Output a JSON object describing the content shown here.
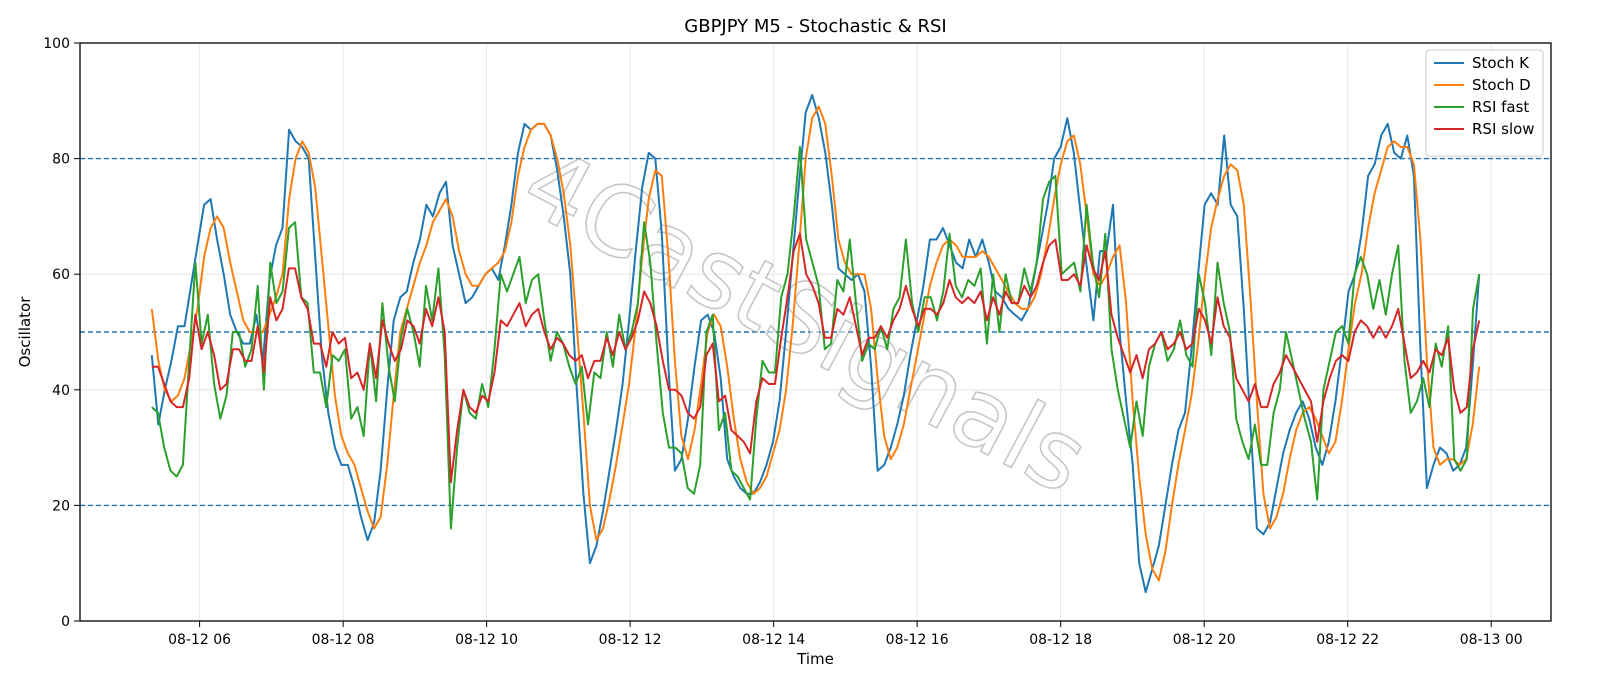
{
  "chart_data": {
    "type": "line",
    "title": "GBPJPY M5 - Stochastic & RSI",
    "xlabel": "Time",
    "ylabel": "Oscillator",
    "ylim": [
      0,
      100
    ],
    "yticks": [
      0,
      20,
      40,
      60,
      80,
      100
    ],
    "xticks": [
      "08-12 06",
      "08-12 08",
      "08-12 10",
      "08-12 12",
      "08-12 14",
      "08-12 16",
      "08-12 18",
      "08-12 20",
      "08-12 22",
      "08-13 00"
    ],
    "x_start": "2024-08-12 05:20",
    "x_end": "2024-08-12 23:50",
    "xlim": [
      "2024-08-12 04:20",
      "2024-08-13 00:50"
    ],
    "reference_lines": [
      20,
      50,
      80
    ],
    "grid": true,
    "legend_position": "top-right",
    "watermark": "4CastSignals",
    "series": [
      {
        "name": "Stoch K",
        "color": "#1f77b4",
        "values": [
          46,
          34,
          40,
          45,
          51,
          51,
          58,
          65,
          72,
          73,
          66,
          60,
          53,
          50,
          48,
          48,
          53,
          45,
          59,
          65,
          68,
          85,
          83,
          82,
          80,
          63,
          46,
          36,
          30,
          27,
          27,
          23,
          18,
          14,
          17,
          26,
          40,
          52,
          56,
          57,
          62,
          66,
          72,
          70,
          74,
          76,
          65,
          60,
          55,
          56,
          58,
          60,
          61,
          59,
          65,
          72,
          81,
          86,
          85,
          86,
          86,
          84,
          78,
          70,
          60,
          40,
          22,
          10,
          13,
          19,
          26,
          33,
          41,
          52,
          64,
          75,
          81,
          80,
          67,
          44,
          26,
          28,
          35,
          44,
          52,
          53,
          50,
          42,
          28,
          25,
          23,
          22,
          22,
          24,
          27,
          31,
          38,
          50,
          63,
          76,
          88,
          91,
          87,
          81,
          72,
          61,
          60,
          59,
          60,
          57,
          44,
          26,
          27,
          30,
          34,
          39,
          46,
          52,
          58,
          66,
          66,
          68,
          65,
          62,
          61,
          66,
          63,
          66,
          62,
          57,
          56,
          54,
          53,
          52,
          54,
          60,
          66,
          72,
          80,
          82,
          87,
          81,
          71,
          61,
          52,
          64,
          64,
          72,
          50,
          38,
          27,
          10,
          5,
          9,
          13,
          20,
          27,
          33,
          36,
          47,
          60,
          72,
          74,
          72,
          84,
          72,
          70,
          54,
          34,
          16,
          15,
          17,
          23,
          29,
          33,
          36,
          38,
          35,
          30,
          27,
          31,
          38,
          47,
          57,
          60,
          67,
          77,
          79,
          84,
          86,
          81,
          80,
          84,
          77,
          47,
          23,
          27,
          30,
          29,
          26,
          27,
          30,
          44,
          60
        ]
      },
      {
        "name": "Stoch D",
        "color": "#ff7f0e",
        "values": [
          54,
          45,
          40,
          38,
          39,
          42,
          48,
          54,
          63,
          68,
          70,
          68,
          62,
          57,
          52,
          50,
          50,
          50,
          53,
          56,
          60,
          73,
          80,
          83,
          81,
          75,
          63,
          51,
          39,
          32,
          29,
          27,
          23,
          19,
          16,
          18,
          27,
          39,
          50,
          54,
          58,
          62,
          65,
          69,
          71,
          73,
          70,
          64,
          60,
          58,
          58,
          60,
          61,
          62,
          64,
          69,
          77,
          82,
          85,
          86,
          86,
          84,
          80,
          74,
          65,
          51,
          36,
          20,
          14,
          16,
          21,
          27,
          34,
          41,
          51,
          63,
          73,
          78,
          77,
          63,
          45,
          32,
          28,
          33,
          41,
          50,
          53,
          51,
          44,
          35,
          28,
          24,
          22,
          23,
          25,
          29,
          33,
          40,
          51,
          65,
          80,
          87,
          89,
          86,
          77,
          66,
          62,
          60,
          60,
          60,
          54,
          42,
          32,
          28,
          30,
          34,
          40,
          46,
          52,
          58,
          62,
          65,
          66,
          65,
          63,
          63,
          63,
          64,
          63,
          61,
          59,
          57,
          55,
          54,
          54,
          56,
          60,
          66,
          73,
          79,
          83,
          84,
          79,
          70,
          60,
          58,
          60,
          63,
          65,
          55,
          38,
          25,
          15,
          9,
          7,
          12,
          20,
          27,
          33,
          39,
          48,
          59,
          68,
          73,
          77,
          79,
          78,
          72,
          56,
          38,
          22,
          16,
          18,
          22,
          28,
          33,
          36,
          37,
          35,
          32,
          29,
          31,
          38,
          47,
          55,
          60,
          68,
          74,
          78,
          82,
          83,
          82,
          82,
          79,
          66,
          45,
          30,
          27,
          28,
          28,
          27,
          28,
          34,
          44
        ]
      },
      {
        "name": "RSI fast",
        "color": "#2ca02c",
        "values": [
          37,
          36,
          30,
          26,
          25,
          27,
          45,
          62,
          48,
          53,
          41,
          35,
          39,
          50,
          50,
          44,
          47,
          58,
          40,
          62,
          55,
          57,
          68,
          69,
          56,
          55,
          43,
          43,
          37,
          46,
          45,
          47,
          35,
          37,
          32,
          48,
          38,
          55,
          44,
          38,
          49,
          54,
          50,
          44,
          58,
          52,
          61,
          46,
          16,
          30,
          40,
          36,
          35,
          41,
          37,
          47,
          60,
          57,
          60,
          63,
          55,
          59,
          60,
          52,
          45,
          50,
          48,
          44,
          41,
          44,
          34,
          43,
          42,
          50,
          44,
          53,
          47,
          50,
          55,
          69,
          62,
          48,
          36,
          30,
          30,
          29,
          23,
          22,
          27,
          50,
          53,
          33,
          36,
          26,
          25,
          23,
          21,
          35,
          45,
          43,
          43,
          56,
          60,
          70,
          82,
          66,
          62,
          58,
          47,
          48,
          59,
          57,
          66,
          55,
          45,
          48,
          47,
          51,
          47,
          54,
          56,
          66,
          55,
          50,
          56,
          56,
          52,
          57,
          67,
          58,
          56,
          59,
          58,
          61,
          48,
          60,
          50,
          60,
          55,
          55,
          61,
          57,
          62,
          73,
          76,
          77,
          60,
          61,
          62,
          57,
          72,
          62,
          56,
          67,
          47,
          40,
          35,
          30,
          38,
          32,
          44,
          48,
          50,
          45,
          47,
          52,
          46,
          44,
          60,
          55,
          46,
          62,
          55,
          50,
          35,
          31,
          28,
          34,
          27,
          27,
          36,
          40,
          50,
          45,
          40,
          35,
          31,
          21,
          40,
          45,
          50,
          51,
          48,
          60,
          63,
          60,
          54,
          59,
          53,
          60,
          65,
          45,
          36,
          38,
          42,
          37,
          48,
          44,
          51,
          28,
          26,
          28,
          54,
          60
        ]
      },
      {
        "name": "RSI slow",
        "color": "#d62728",
        "values": [
          44,
          44,
          41,
          38,
          37,
          37,
          42,
          53,
          47,
          50,
          46,
          40,
          41,
          47,
          47,
          45,
          45,
          51,
          43,
          56,
          52,
          54,
          61,
          61,
          56,
          54,
          48,
          48,
          44,
          50,
          48,
          49,
          42,
          43,
          40,
          48,
          42,
          52,
          48,
          45,
          47,
          52,
          51,
          48,
          54,
          51,
          56,
          50,
          24,
          33,
          40,
          37,
          36,
          39,
          38,
          43,
          52,
          51,
          53,
          55,
          51,
          53,
          54,
          50,
          47,
          49,
          48,
          46,
          45,
          46,
          42,
          45,
          45,
          49,
          46,
          50,
          47,
          49,
          52,
          57,
          55,
          51,
          45,
          40,
          40,
          39,
          36,
          35,
          37,
          46,
          48,
          38,
          39,
          33,
          32,
          31,
          29,
          38,
          42,
          41,
          41,
          49,
          56,
          64,
          67,
          60,
          58,
          55,
          49,
          49,
          54,
          53,
          56,
          51,
          46,
          49,
          49,
          51,
          49,
          52,
          54,
          58,
          54,
          51,
          54,
          54,
          53,
          55,
          59,
          56,
          55,
          56,
          55,
          57,
          52,
          56,
          53,
          57,
          55,
          55,
          58,
          56,
          58,
          62,
          65,
          66,
          59,
          59,
          60,
          58,
          65,
          61,
          59,
          64,
          53,
          49,
          46,
          43,
          46,
          42,
          47,
          48,
          50,
          47,
          48,
          50,
          47,
          48,
          54,
          52,
          48,
          56,
          51,
          49,
          42,
          40,
          38,
          41,
          37,
          37,
          41,
          43,
          46,
          44,
          42,
          40,
          38,
          31,
          38,
          42,
          45,
          46,
          45,
          50,
          52,
          51,
          49,
          51,
          49,
          51,
          54,
          48,
          42,
          43,
          45,
          43,
          47,
          46,
          49,
          40,
          36,
          37,
          47,
          52
        ]
      }
    ]
  }
}
